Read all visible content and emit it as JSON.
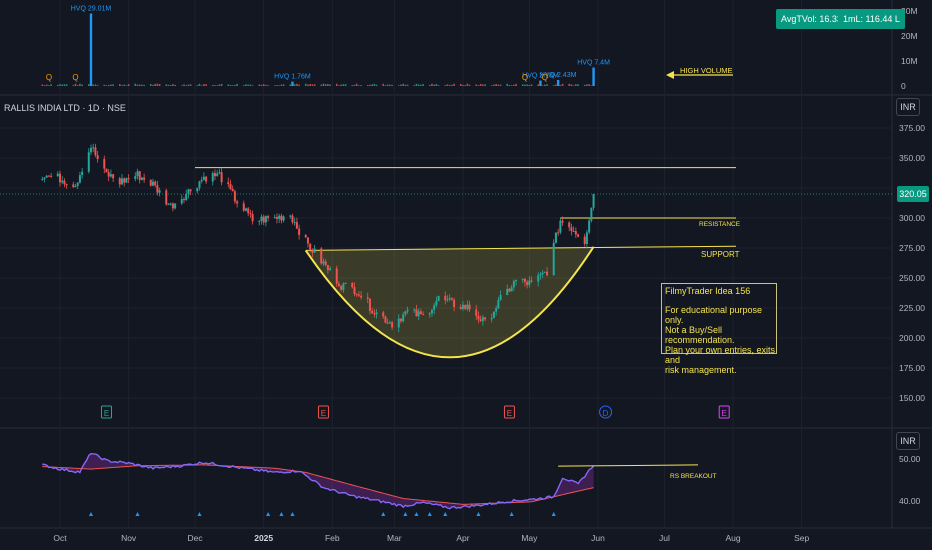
{
  "header": {
    "symbol_title": "RALLIS INDIA LTD · 1D · NSE",
    "avg_vol": "AvgTVol: 16.33 Cr",
    "one_m": "1mL: 116.44 L",
    "currency_main": "INR",
    "currency_rs": "INR",
    "last_price": "320.05"
  },
  "annotations": {
    "high_volume": "HIGH VOLUME",
    "resistance": "RESISTANCE",
    "support": "SUPPORT",
    "rs_breakout": "RS BREAKOUT",
    "hvq_labels": [
      "HVQ 29.01M",
      "HVQ 1.76M",
      "HVQ 2.18M",
      "HVQ 2.43M",
      "HVQ 7.4M"
    ],
    "q_markers": [
      "Q",
      "Q",
      "Q",
      "Q"
    ],
    "event_labels": [
      "E",
      "E",
      "E",
      "D",
      "E"
    ],
    "note_title": "FilmyTrader Idea  156",
    "note_lines": [
      "For educational purpose only.",
      "Not a Buy/Sell recommendation.",
      "Plan your own entries, exits and",
      "risk management."
    ]
  },
  "colors": {
    "background": "#131722",
    "up": "#26a69a",
    "down": "#ef5350",
    "annotation": "#f5e44e",
    "rs_line": "#2196f3",
    "rs_ma": "#e040fb",
    "volume": "#ef5350"
  },
  "chart_data": [
    {
      "type": "bar",
      "panel": "volume",
      "ylabels": [
        "30M",
        "20M",
        "10M",
        "0"
      ],
      "ylim": [
        0,
        32000000
      ],
      "highlighted_volumes": [
        {
          "label": "HVQ 29.01M",
          "date": "2024-10-15",
          "value": 29010000
        },
        {
          "label": "HVQ 1.76M",
          "date": "2025-01-14",
          "value": 1760000
        },
        {
          "label": "HVQ 2.18M",
          "date": "2025-05-06",
          "value": 2180000
        },
        {
          "label": "HVQ 2.43M",
          "date": "2025-05-14",
          "value": 2430000
        },
        {
          "label": "HVQ 7.4M",
          "date": "2025-05-30",
          "value": 7400000
        }
      ],
      "typical_volume": 600000
    },
    {
      "type": "candlestick",
      "panel": "price",
      "title": "RALLIS INDIA LTD · 1D · NSE",
      "ylabel": "INR",
      "yticks": [
        150,
        175,
        200,
        225,
        250,
        275,
        300,
        325,
        350,
        375
      ],
      "ylim": [
        135,
        388
      ],
      "xticks": [
        "Oct",
        "Nov",
        "Dec",
        "2025",
        "Feb",
        "Mar",
        "Apr",
        "May",
        "Jun",
        "Jul",
        "Aug",
        "Sep"
      ],
      "last": 320.05,
      "resistance": 300,
      "support": 277,
      "prior_high_line": 342,
      "price_path": [
        {
          "date": "2024-09-23",
          "close": 336
        },
        {
          "date": "2024-10-01",
          "close": 333
        },
        {
          "date": "2024-10-08",
          "close": 328
        },
        {
          "date": "2024-10-15",
          "close": 360
        },
        {
          "date": "2024-10-21",
          "close": 338
        },
        {
          "date": "2024-10-28",
          "close": 330
        },
        {
          "date": "2024-11-05",
          "close": 336
        },
        {
          "date": "2024-11-12",
          "close": 328
        },
        {
          "date": "2024-11-20",
          "close": 310
        },
        {
          "date": "2024-11-28",
          "close": 322
        },
        {
          "date": "2024-12-05",
          "close": 334
        },
        {
          "date": "2024-12-12",
          "close": 336
        },
        {
          "date": "2024-12-19",
          "close": 316
        },
        {
          "date": "2024-12-27",
          "close": 298
        },
        {
          "date": "2025-01-06",
          "close": 300
        },
        {
          "date": "2025-01-13",
          "close": 303
        },
        {
          "date": "2025-01-20",
          "close": 280
        },
        {
          "date": "2025-01-28",
          "close": 262
        },
        {
          "date": "2025-02-05",
          "close": 244
        },
        {
          "date": "2025-02-12",
          "close": 240
        },
        {
          "date": "2025-02-20",
          "close": 222
        },
        {
          "date": "2025-02-28",
          "close": 212
        },
        {
          "date": "2025-03-07",
          "close": 222
        },
        {
          "date": "2025-03-14",
          "close": 218
        },
        {
          "date": "2025-03-21",
          "close": 233
        },
        {
          "date": "2025-03-28",
          "close": 228
        },
        {
          "date": "2025-04-04",
          "close": 225
        },
        {
          "date": "2025-04-11",
          "close": 212
        },
        {
          "date": "2025-04-18",
          "close": 232
        },
        {
          "date": "2025-04-25",
          "close": 248
        },
        {
          "date": "2025-05-02",
          "close": 245
        },
        {
          "date": "2025-05-09",
          "close": 256
        },
        {
          "date": "2025-05-15",
          "close": 298
        },
        {
          "date": "2025-05-20",
          "close": 292
        },
        {
          "date": "2025-05-26",
          "close": 281
        },
        {
          "date": "2025-05-30",
          "close": 320.05
        }
      ]
    },
    {
      "type": "line",
      "panel": "relative_strength",
      "ylabel": "INR",
      "yticks": [
        40,
        50
      ],
      "ylim": [
        36,
        54
      ],
      "series": [
        {
          "name": "",
          "values": [
            {
              "date": "2024-09-23",
              "value": 48.6
            },
            {
              "date": "2024-10-01",
              "value": 47.6
            },
            {
              "date": "2024-10-10",
              "value": 46.9
            },
            {
              "date": "2024-10-15",
              "value": 51.5
            },
            {
              "date": "2024-10-22",
              "value": 49.6
            },
            {
              "date": "2024-11-01",
              "value": 49.0
            },
            {
              "date": "2024-11-12",
              "value": 47.8
            },
            {
              "date": "2024-11-25",
              "value": 48.4
            },
            {
              "date": "2024-12-05",
              "value": 49.2
            },
            {
              "date": "2024-12-20",
              "value": 48.0
            },
            {
              "date": "2025-01-06",
              "value": 46.8
            },
            {
              "date": "2025-01-17",
              "value": 47.2
            },
            {
              "date": "2025-01-28",
              "value": 43.2
            },
            {
              "date": "2025-02-10",
              "value": 41.2
            },
            {
              "date": "2025-02-24",
              "value": 39.8
            },
            {
              "date": "2025-03-05",
              "value": 38.8
            },
            {
              "date": "2025-03-14",
              "value": 39.6
            },
            {
              "date": "2025-03-26",
              "value": 38.4
            },
            {
              "date": "2025-04-07",
              "value": 38.9
            },
            {
              "date": "2025-04-21",
              "value": 39.9
            },
            {
              "date": "2025-05-02",
              "value": 40.4
            },
            {
              "date": "2025-05-12",
              "value": 41.0
            },
            {
              "date": "2025-05-16",
              "value": 45.6
            },
            {
              "date": "2025-05-23",
              "value": 44.0
            },
            {
              "date": "2025-05-30",
              "value": 48.6
            }
          ]
        },
        {
          "name": "",
          "values": [
            {
              "date": "2024-09-23",
              "value": 48.2
            },
            {
              "date": "2024-10-15",
              "value": 47.6
            },
            {
              "date": "2024-11-05",
              "value": 48.4
            },
            {
              "date": "2024-12-05",
              "value": 48.6
            },
            {
              "date": "2025-01-06",
              "value": 47.8
            },
            {
              "date": "2025-01-20",
              "value": 46.8
            },
            {
              "date": "2025-02-10",
              "value": 43.8
            },
            {
              "date": "2025-03-05",
              "value": 40.6
            },
            {
              "date": "2025-04-01",
              "value": 39.2
            },
            {
              "date": "2025-05-02",
              "value": 39.8
            },
            {
              "date": "2025-05-20",
              "value": 42.0
            },
            {
              "date": "2025-05-30",
              "value": 43.2
            }
          ]
        }
      ]
    }
  ]
}
